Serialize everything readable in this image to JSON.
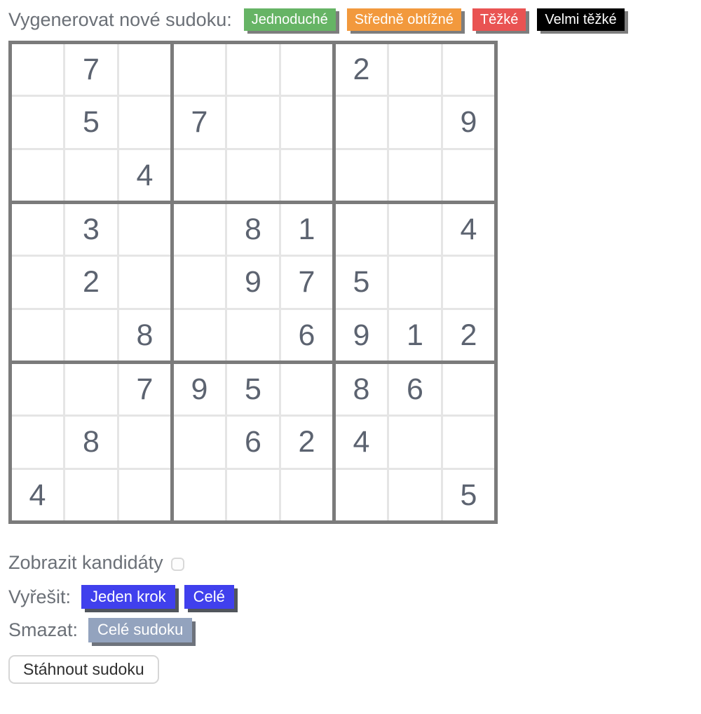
{
  "header": {
    "label": "Vygenerovat nové sudoku:",
    "buttons": [
      {
        "id": "easy",
        "label": "Jednoduché",
        "color": "#66b465"
      },
      {
        "id": "medium",
        "label": "Středně obtížné",
        "color": "#f2993d"
      },
      {
        "id": "hard",
        "label": "Těžké",
        "color": "#e95352"
      },
      {
        "id": "very-hard",
        "label": "Velmi těžké",
        "color": "#000000"
      }
    ]
  },
  "board": {
    "grid": [
      [
        "",
        "7",
        "",
        "",
        "",
        "",
        "2",
        "",
        ""
      ],
      [
        "",
        "5",
        "",
        "7",
        "",
        "",
        "",
        "",
        "9"
      ],
      [
        "",
        "",
        "4",
        "",
        "",
        "",
        "",
        "",
        ""
      ],
      [
        "",
        "3",
        "",
        "",
        "8",
        "1",
        "",
        "",
        "4"
      ],
      [
        "",
        "2",
        "",
        "",
        "9",
        "7",
        "5",
        "",
        ""
      ],
      [
        "",
        "",
        "8",
        "",
        "",
        "6",
        "9",
        "1",
        "2"
      ],
      [
        "",
        "",
        "7",
        "9",
        "5",
        "",
        "8",
        "6",
        ""
      ],
      [
        "",
        "8",
        "",
        "",
        "6",
        "2",
        "4",
        "",
        ""
      ],
      [
        "4",
        "",
        "",
        "",
        "",
        "",
        "",
        "",
        "5"
      ]
    ]
  },
  "controls": {
    "candidates": {
      "label": "Zobrazit kandidáty",
      "checked": false
    },
    "solve": {
      "label": "Vyřešit:",
      "buttons": [
        {
          "label": "Jeden krok",
          "color": "#4040ed"
        },
        {
          "label": "Celé",
          "color": "#4040ed"
        }
      ]
    },
    "clear": {
      "label": "Smazat:",
      "button": {
        "label": "Celé sudoku",
        "color": "#93a3be"
      }
    },
    "download": {
      "label": "Stáhnout sudoku"
    }
  },
  "colors": {
    "grid_line_major": "#7b7b7b",
    "grid_line_minor": "#e5e5e5",
    "digit": "#5c6370",
    "label_text": "#6b7077"
  }
}
